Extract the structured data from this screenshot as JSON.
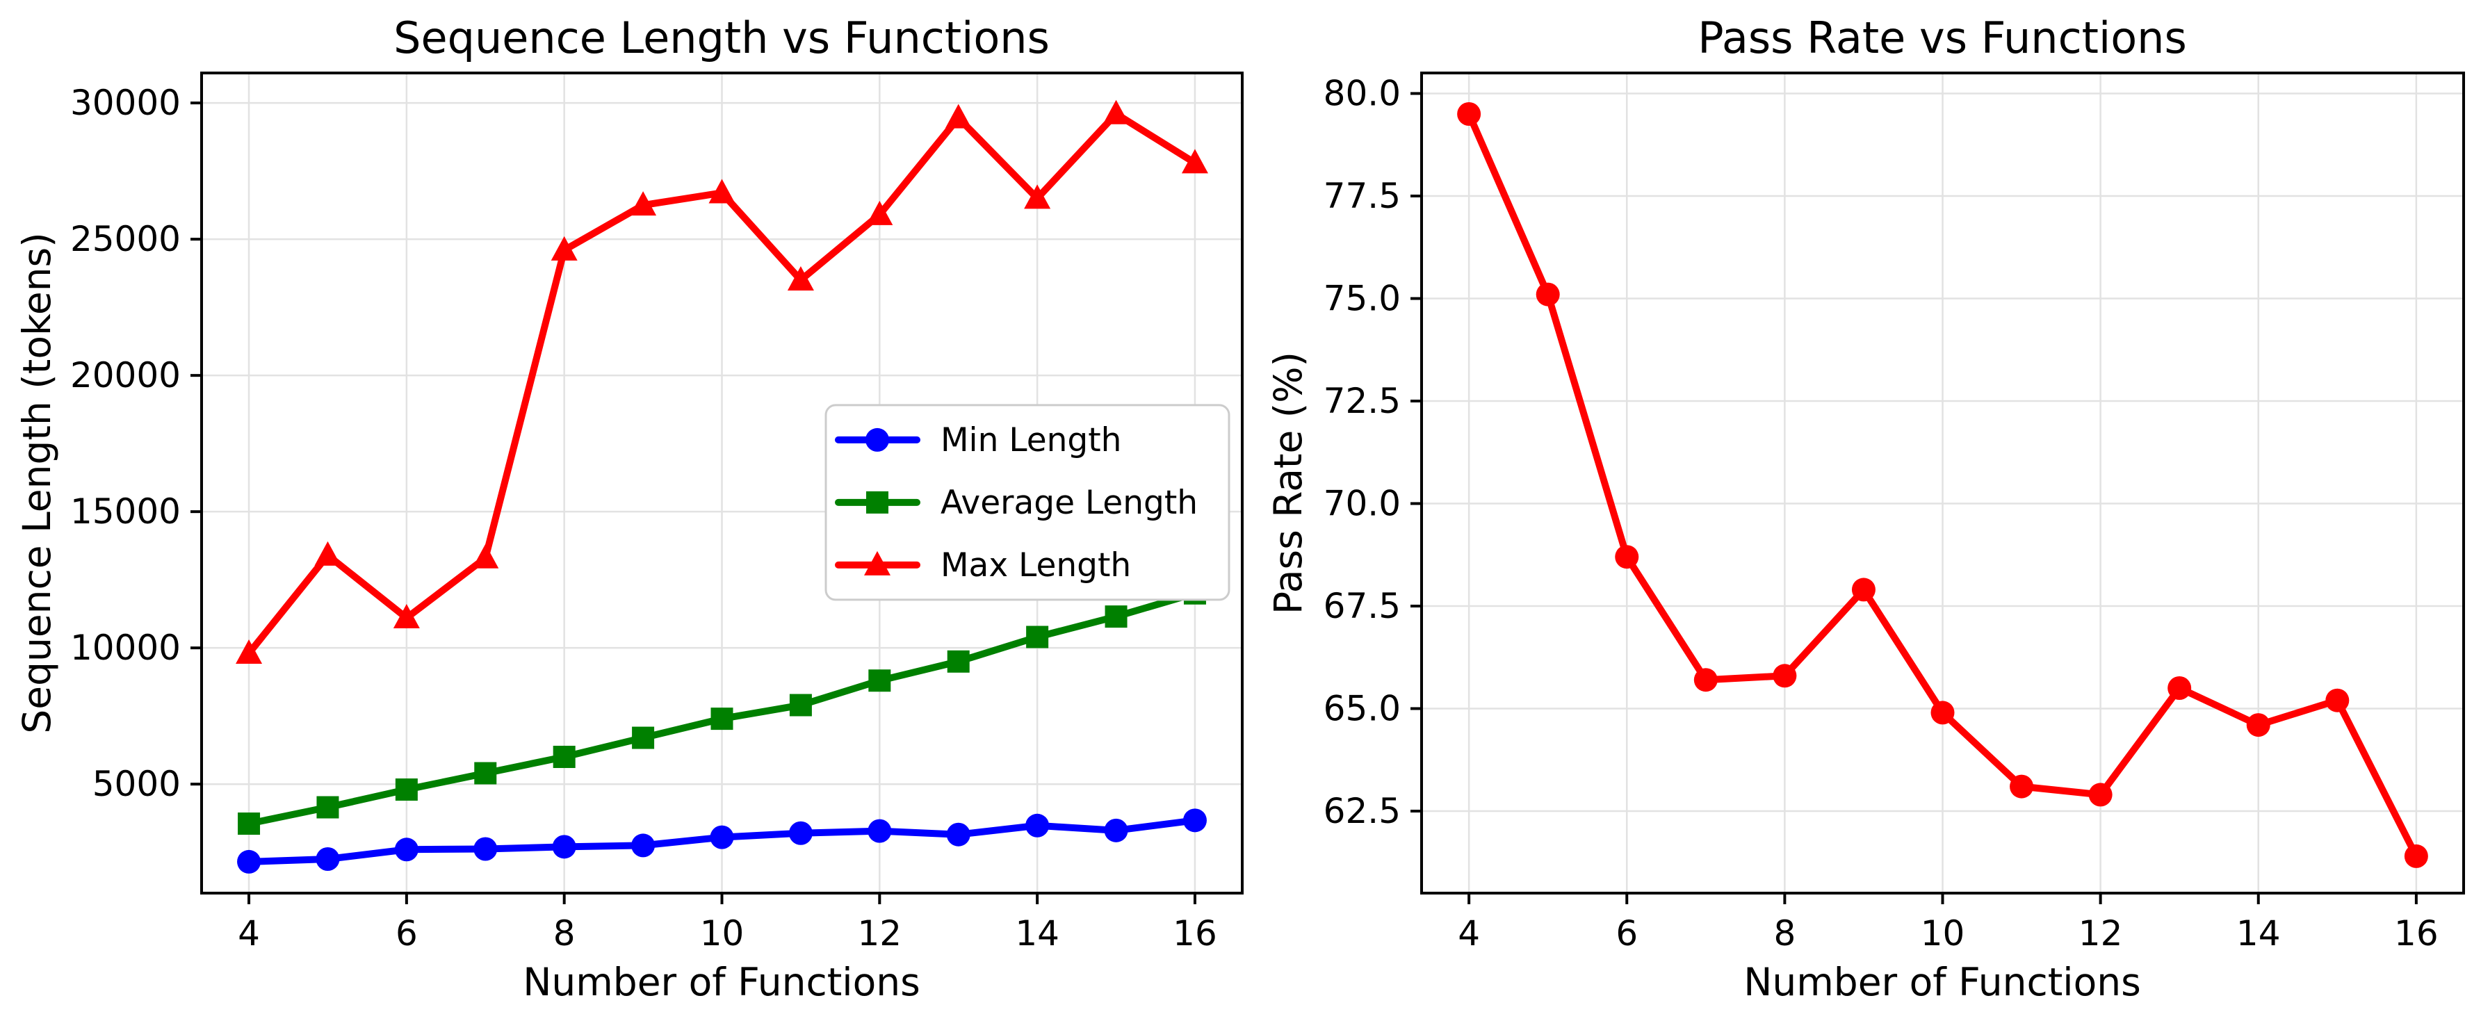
{
  "figure": {
    "background": "#ffffff",
    "grid_color": "#e2e2e2",
    "spine_color": "#000000",
    "legend_border_color": "#cccccc"
  },
  "chart_data": [
    {
      "type": "line",
      "title": "Sequence Length vs Functions",
      "xlabel": "Number of Functions",
      "ylabel": "Sequence Length (tokens)",
      "x": [
        4,
        5,
        6,
        7,
        8,
        9,
        10,
        11,
        12,
        13,
        14,
        15,
        16
      ],
      "xlim": [
        3.4,
        16.6
      ],
      "ylim": [
        1000,
        31100
      ],
      "xticks": [
        4,
        6,
        8,
        10,
        12,
        14,
        16
      ],
      "xtick_labels": [
        "4",
        "6",
        "8",
        "10",
        "12",
        "14",
        "16"
      ],
      "yticks": [
        5000,
        10000,
        15000,
        20000,
        25000,
        30000
      ],
      "ytick_labels": [
        "5000",
        "10000",
        "15000",
        "20000",
        "25000",
        "30000"
      ],
      "grid": true,
      "legend": true,
      "legend_position": "center right",
      "series": [
        {
          "name": "Min Length",
          "color": "#0000ff",
          "marker": "circle",
          "values": [
            2150,
            2250,
            2600,
            2620,
            2700,
            2750,
            3050,
            3200,
            3280,
            3150,
            3480,
            3300,
            3670
          ]
        },
        {
          "name": "Average Length",
          "color": "#008000",
          "marker": "square",
          "values": [
            3550,
            4150,
            4800,
            5400,
            6000,
            6700,
            7400,
            7900,
            8800,
            9500,
            10400,
            11150,
            12000
          ]
        },
        {
          "name": "Max Length",
          "color": "#ff0000",
          "marker": "triangle",
          "values": [
            9800,
            13400,
            11100,
            13300,
            24600,
            26250,
            26700,
            23500,
            25900,
            29450,
            26500,
            29600,
            27800
          ]
        }
      ]
    },
    {
      "type": "line",
      "title": "Pass Rate vs Functions",
      "xlabel": "Number of Functions",
      "ylabel": "Pass Rate (%)",
      "x": [
        4,
        5,
        6,
        7,
        8,
        9,
        10,
        11,
        12,
        13,
        14,
        15,
        16
      ],
      "xlim": [
        3.4,
        16.6
      ],
      "ylim": [
        60.5,
        80.5
      ],
      "xticks": [
        4,
        6,
        8,
        10,
        12,
        14,
        16
      ],
      "xtick_labels": [
        "4",
        "6",
        "8",
        "10",
        "12",
        "14",
        "16"
      ],
      "yticks": [
        62.5,
        65.0,
        67.5,
        70.0,
        72.5,
        75.0,
        77.5,
        80.0
      ],
      "ytick_labels": [
        "62.5",
        "65.0",
        "67.5",
        "70.0",
        "72.5",
        "75.0",
        "77.5",
        "80.0"
      ],
      "grid": true,
      "legend": false,
      "legend_position": "none",
      "series": [
        {
          "name": "Pass Rate",
          "color": "#ff0000",
          "marker": "circle",
          "values": [
            79.5,
            75.1,
            68.7,
            65.7,
            65.8,
            67.9,
            64.9,
            63.1,
            62.9,
            65.5,
            64.6,
            65.2,
            61.4
          ]
        }
      ]
    }
  ]
}
